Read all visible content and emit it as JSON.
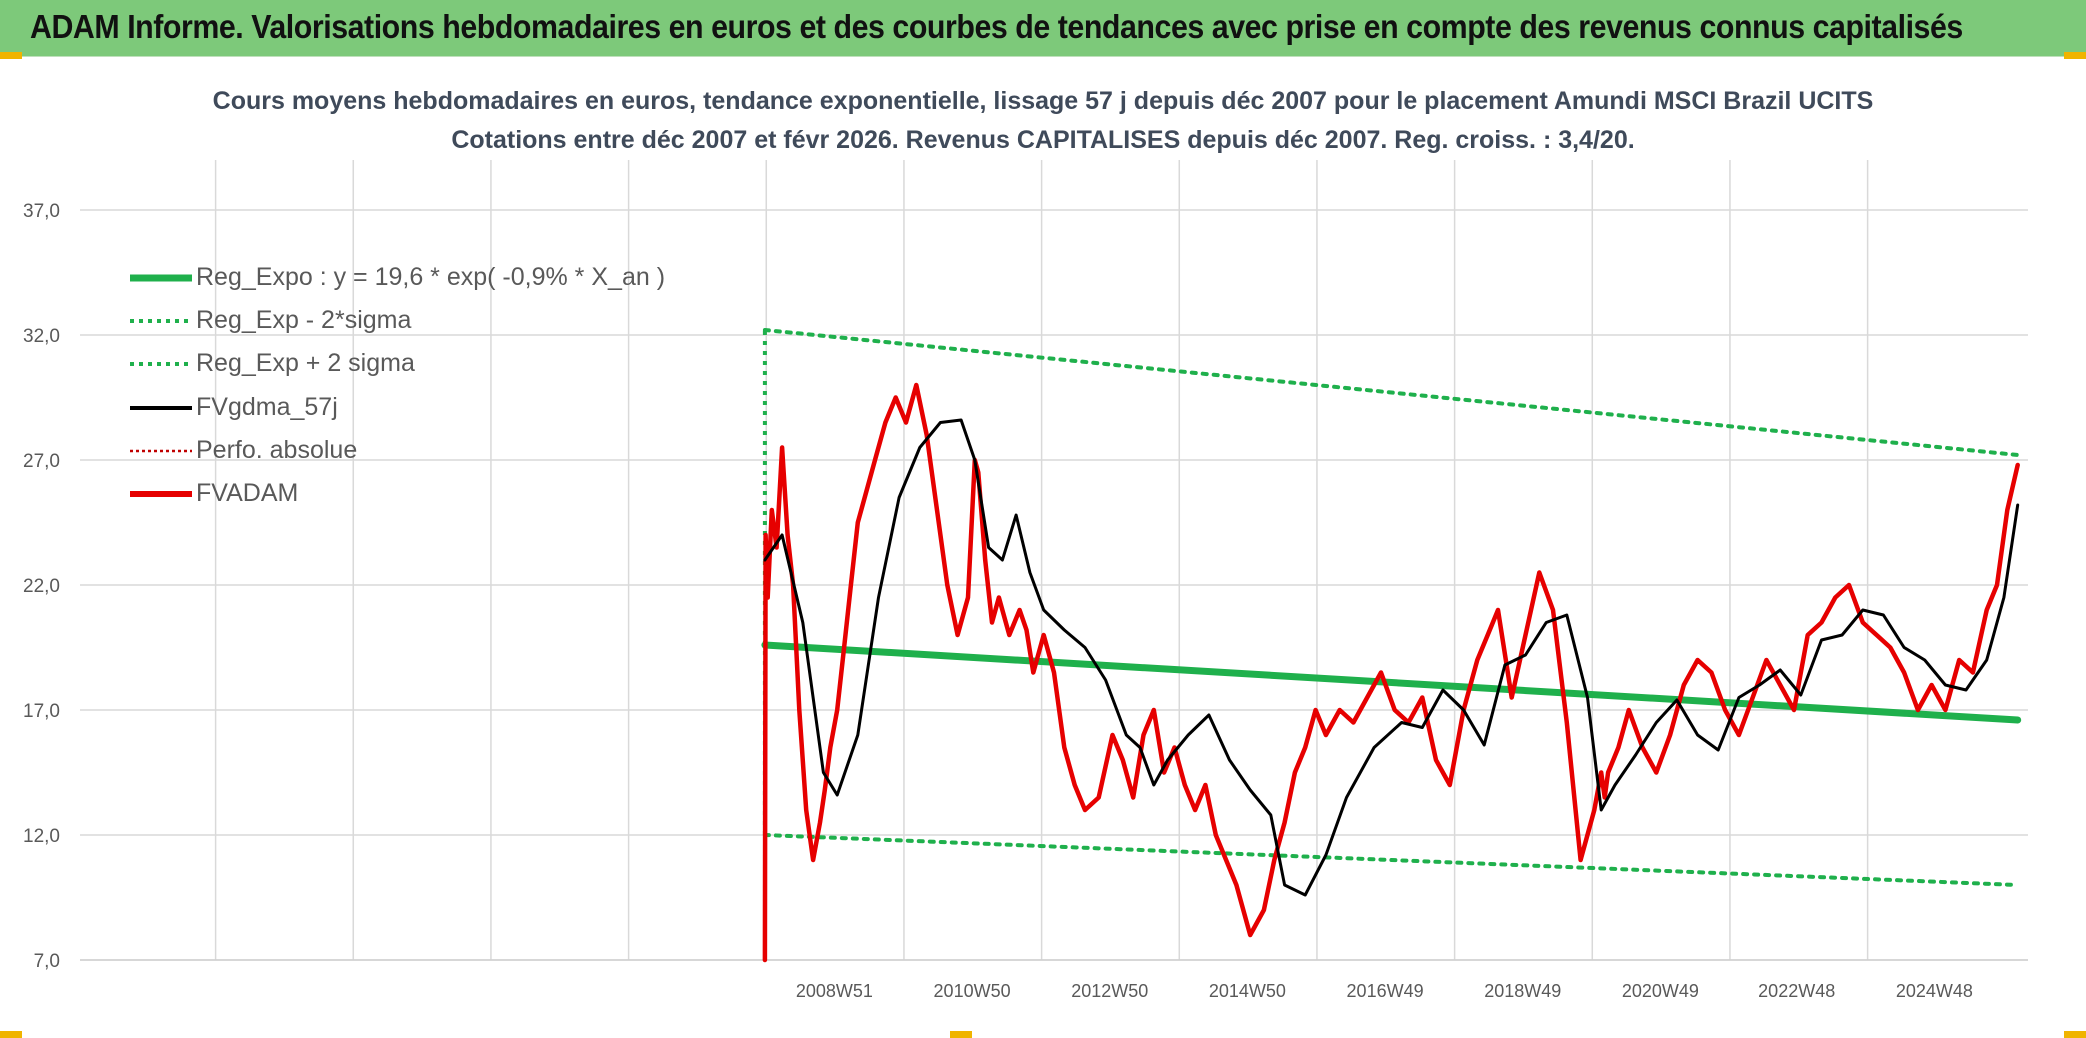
{
  "header": {
    "title": "ADAM Informe. Valorisations hebdomadaires en euros et des courbes de tendances avec prise en compte des revenus connus capitalisés"
  },
  "colors": {
    "header_bg": "#7dc97a",
    "reg_expo": "#1fb04c",
    "sigma": "#1fb04c",
    "gdma": "#000000",
    "perfo": "#c00000",
    "fvadam": "#e60000",
    "grid": "#d9d9d9"
  },
  "chart_data": {
    "type": "line",
    "title": "Cours moyens hebdomadaires en euros, tendance exponentielle, lissage 57 j depuis déc 2007 pour le placement Amundi MSCI Brazil UCITS",
    "subtitle": "Cotations entre déc 2007 et févr 2026. Revenus CAPITALISES depuis déc 2007. Reg. croiss. : 3,4/20.",
    "xlabel": "",
    "ylabel": "",
    "ylim": [
      7,
      39
    ],
    "yticks": [
      "7,0",
      "12,0",
      "17,0",
      "22,0",
      "27,0",
      "32,0",
      "37,0"
    ],
    "ytick_values": [
      7,
      12,
      17,
      22,
      27,
      32,
      37
    ],
    "xticks": [
      "2008W51",
      "2010W50",
      "2012W50",
      "2014W50",
      "2016W49",
      "2018W49",
      "2020W49",
      "2022W48",
      "2024W48"
    ],
    "xtick_years": [
      2008.96,
      2010.96,
      2012.96,
      2014.96,
      2016.96,
      2018.96,
      2020.96,
      2022.94,
      2024.94
    ],
    "xlim_years": [
      1998.0,
      2026.3
    ],
    "x_start_year": 2007.95,
    "x_end_year": 2026.15,
    "grid": true,
    "legend_position": "top-left",
    "legend": [
      {
        "label": "Reg_Expo : y = 19,6 * exp( -0,9% *  X_an )",
        "style": "solid-thick",
        "color": "#1fb04c"
      },
      {
        "label": "Reg_Exp - 2*sigma",
        "style": "dotted",
        "color": "#1fb04c"
      },
      {
        "label": "Reg_Exp + 2 sigma",
        "style": "dotted",
        "color": "#1fb04c"
      },
      {
        "label": "FVgdma_57j",
        "style": "solid",
        "color": "#000000"
      },
      {
        "label": "Perfo. absolue",
        "style": "dotted-thin",
        "color": "#c00000"
      },
      {
        "label": "FVADAM",
        "style": "solid-thick",
        "color": "#e60000"
      }
    ],
    "series": [
      {
        "name": "Reg_Expo : y = 19,6 * exp( -0,9% *  X_an )",
        "x": [
          2007.95,
          2026.15
        ],
        "y": [
          19.6,
          16.6
        ]
      },
      {
        "name": "Reg_Exp - 2*sigma",
        "x": [
          2007.95,
          2026.15
        ],
        "y": [
          12.0,
          10.0
        ]
      },
      {
        "name": "Reg_Exp + 2 sigma",
        "x": [
          2007.95,
          2026.15
        ],
        "y": [
          32.2,
          27.2
        ]
      },
      {
        "name": "FVgdma_57j",
        "x": [
          2007.95,
          2008.2,
          2008.5,
          2008.8,
          2009.0,
          2009.3,
          2009.6,
          2009.9,
          2010.2,
          2010.5,
          2010.8,
          2011.0,
          2011.2,
          2011.4,
          2011.6,
          2011.8,
          2012.0,
          2012.3,
          2012.6,
          2012.9,
          2013.2,
          2013.4,
          2013.6,
          2013.8,
          2014.1,
          2014.4,
          2014.7,
          2015.0,
          2015.3,
          2015.5,
          2015.8,
          2016.1,
          2016.4,
          2016.8,
          2017.2,
          2017.5,
          2017.8,
          2018.1,
          2018.4,
          2018.7,
          2019.0,
          2019.3,
          2019.6,
          2019.9,
          2020.1,
          2020.3,
          2020.6,
          2020.9,
          2021.2,
          2021.5,
          2021.8,
          2022.1,
          2022.4,
          2022.7,
          2023.0,
          2023.3,
          2023.6,
          2023.9,
          2024.2,
          2024.5,
          2024.8,
          2025.1,
          2025.4,
          2025.7,
          2025.95,
          2026.15
        ],
        "y": [
          23.0,
          24.0,
          20.5,
          14.5,
          13.6,
          16.0,
          21.5,
          25.5,
          27.5,
          28.5,
          28.6,
          27.0,
          23.5,
          23.0,
          24.8,
          22.5,
          21.0,
          20.2,
          19.5,
          18.2,
          16.0,
          15.5,
          14.0,
          15.0,
          16.0,
          16.8,
          15.0,
          13.8,
          12.8,
          10.0,
          9.6,
          11.2,
          13.5,
          15.5,
          16.5,
          16.3,
          17.8,
          17.0,
          15.6,
          18.8,
          19.2,
          20.5,
          20.8,
          17.5,
          13.0,
          14.0,
          15.2,
          16.5,
          17.4,
          16.0,
          15.4,
          17.5,
          18.0,
          18.6,
          17.6,
          19.8,
          20.0,
          21.0,
          20.8,
          19.5,
          19.0,
          18.0,
          17.8,
          19.0,
          21.5,
          25.2
        ]
      },
      {
        "name": "FVADAM",
        "x": [
          2007.95,
          2007.96,
          2007.99,
          2008.05,
          2008.12,
          2008.2,
          2008.28,
          2008.36,
          2008.45,
          2008.55,
          2008.65,
          2008.75,
          2008.82,
          2008.9,
          2009.0,
          2009.1,
          2009.2,
          2009.3,
          2009.4,
          2009.55,
          2009.7,
          2009.85,
          2010.0,
          2010.15,
          2010.3,
          2010.45,
          2010.6,
          2010.75,
          2010.9,
          2011.0,
          2011.05,
          2011.15,
          2011.25,
          2011.35,
          2011.5,
          2011.65,
          2011.75,
          2011.85,
          2012.0,
          2012.15,
          2012.3,
          2012.45,
          2012.6,
          2012.8,
          2013.0,
          2013.15,
          2013.3,
          2013.45,
          2013.6,
          2013.75,
          2013.9,
          2014.05,
          2014.2,
          2014.35,
          2014.5,
          2014.65,
          2014.8,
          2015.0,
          2015.2,
          2015.35,
          2015.5,
          2015.65,
          2015.8,
          2015.95,
          2016.1,
          2016.3,
          2016.5,
          2016.7,
          2016.9,
          2017.1,
          2017.3,
          2017.5,
          2017.7,
          2017.9,
          2018.1,
          2018.3,
          2018.45,
          2018.6,
          2018.8,
          2019.0,
          2019.2,
          2019.4,
          2019.6,
          2019.8,
          2020.0,
          2020.1,
          2020.15,
          2020.2,
          2020.35,
          2020.5,
          2020.7,
          2020.9,
          2021.1,
          2021.3,
          2021.5,
          2021.7,
          2021.9,
          2022.1,
          2022.3,
          2022.5,
          2022.7,
          2022.9,
          2023.1,
          2023.3,
          2023.5,
          2023.7,
          2023.9,
          2024.1,
          2024.3,
          2024.5,
          2024.7,
          2024.9,
          2025.1,
          2025.3,
          2025.5,
          2025.7,
          2025.85,
          2026.0,
          2026.15
        ],
        "y": [
          7.0,
          24.0,
          21.5,
          25.0,
          23.5,
          27.5,
          24.0,
          22.0,
          17.0,
          13.0,
          11.0,
          12.5,
          13.8,
          15.5,
          17.0,
          19.5,
          22.0,
          24.5,
          25.5,
          27.0,
          28.5,
          29.5,
          28.5,
          30.0,
          28.0,
          25.0,
          22.0,
          20.0,
          21.5,
          27.0,
          26.5,
          23.0,
          20.5,
          21.5,
          20.0,
          21.0,
          20.2,
          18.5,
          20.0,
          18.5,
          15.5,
          14.0,
          13.0,
          13.5,
          16.0,
          15.0,
          13.5,
          16.0,
          17.0,
          14.5,
          15.5,
          14.0,
          13.0,
          14.0,
          12.0,
          11.0,
          10.0,
          8.0,
          9.0,
          11.0,
          12.5,
          14.5,
          15.5,
          17.0,
          16.0,
          17.0,
          16.5,
          17.5,
          18.5,
          17.0,
          16.5,
          17.5,
          15.0,
          14.0,
          17.0,
          19.0,
          20.0,
          21.0,
          17.5,
          20.0,
          22.5,
          21.0,
          16.5,
          11.0,
          13.0,
          14.5,
          13.5,
          14.5,
          15.5,
          17.0,
          15.5,
          14.5,
          16.0,
          18.0,
          19.0,
          18.5,
          17.0,
          16.0,
          17.5,
          19.0,
          18.0,
          17.0,
          20.0,
          20.5,
          21.5,
          22.0,
          20.5,
          20.0,
          19.5,
          18.5,
          17.0,
          18.0,
          17.0,
          19.0,
          18.5,
          21.0,
          22.0,
          25.0,
          26.8
        ]
      }
    ]
  }
}
